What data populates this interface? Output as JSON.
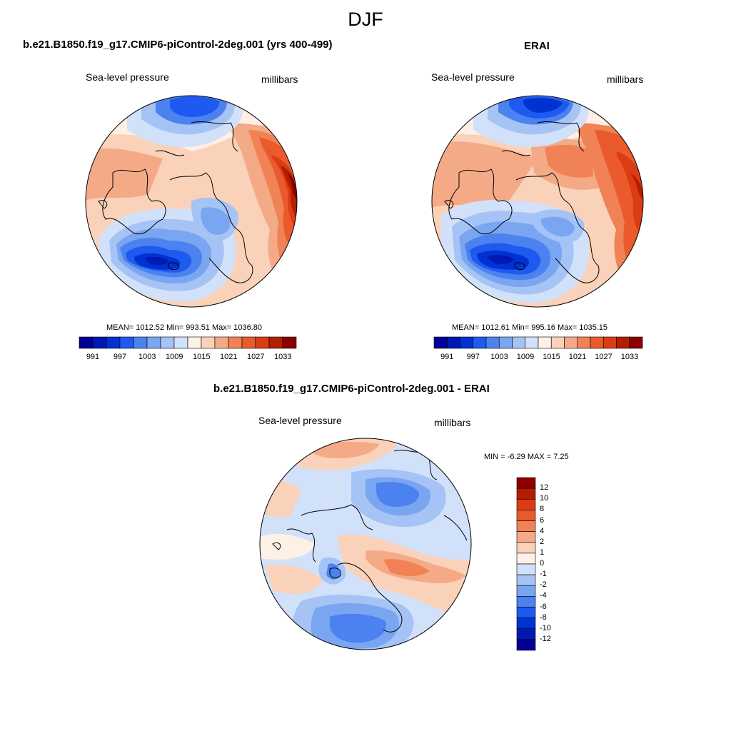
{
  "figure": {
    "title": "DJF"
  },
  "colors": {
    "abs_palette": [
      "#000096",
      "#0019b4",
      "#0032d2",
      "#1e5af0",
      "#4b82f0",
      "#7aa5f0",
      "#a5c3f5",
      "#d2e1fa",
      "#fff0e6",
      "#fad2b9",
      "#f5aa87",
      "#f08255",
      "#eb5a2d",
      "#dc3c14",
      "#b41e00",
      "#8c0000"
    ],
    "diff_palette": [
      "#000096",
      "#0019b4",
      "#0032d2",
      "#1e5af0",
      "#4b82f0",
      "#7aa5f0",
      "#a5c3f5",
      "#d2e1fa",
      "#fff0e6",
      "#fad2b9",
      "#f5aa87",
      "#f08255",
      "#eb5a2d",
      "#dc3c14",
      "#b41e00",
      "#8c0000"
    ]
  },
  "panels": {
    "model": {
      "title": "b.e21.B1850.f19_g17.CMIP6-piControl-2deg.001 (yrs 400-499)",
      "variable": "Sea-level pressure",
      "units": "millibars",
      "stats": "MEAN= 1012.52  Min= 993.51  Max= 1036.80",
      "colorbar_ticks": [
        "991",
        "997",
        "1003",
        "1009",
        "1015",
        "1021",
        "1027",
        "1033"
      ]
    },
    "obs": {
      "title": "ERAI",
      "variable": "Sea-level pressure",
      "units": "millibars",
      "stats": "MEAN= 1012.61  Min= 995.16  Max= 1035.15",
      "colorbar_ticks": [
        "991",
        "997",
        "1003",
        "1009",
        "1015",
        "1021",
        "1027",
        "1033"
      ]
    },
    "diff": {
      "title": "b.e21.B1850.f19_g17.CMIP6-piControl-2deg.001 - ERAI",
      "variable": "Sea-level pressure",
      "units": "millibars",
      "stats": "MIN =  -6.29 MAX =   7.25",
      "colorbar_ticks": [
        "12",
        "10",
        "8",
        "6",
        "4",
        "2",
        "1",
        "0",
        "-1",
        "-2",
        "-4",
        "-6",
        "-8",
        "-10",
        "-12"
      ]
    }
  }
}
